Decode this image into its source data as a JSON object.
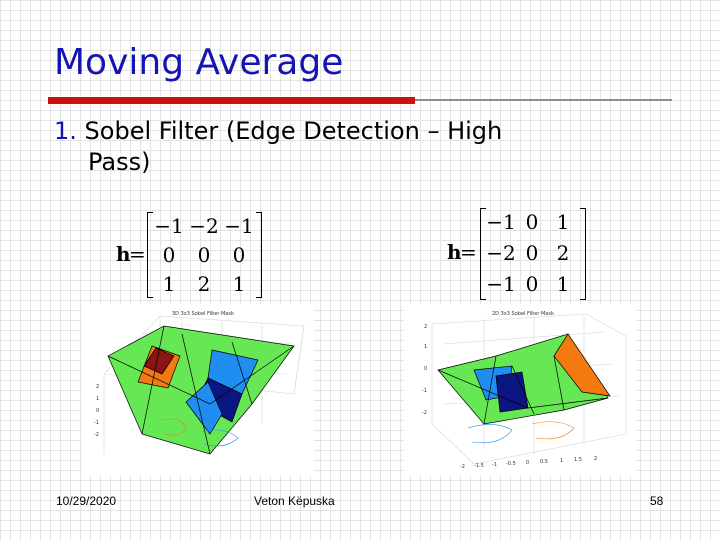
{
  "slide": {
    "title": "Moving Average",
    "bullet_number": "1.",
    "bullet_line1": "Sobel Filter (Edge Detection – High",
    "bullet_line2": "Pass)"
  },
  "matrix_left": {
    "label": "h",
    "equals": "=",
    "rows": [
      [
        "−1",
        "−2",
        "−1"
      ],
      [
        "0",
        "0",
        "0"
      ],
      [
        "1",
        "2",
        "1"
      ]
    ]
  },
  "matrix_right": {
    "label": "h",
    "equals": "=",
    "rows": [
      [
        "−1",
        "0",
        "1"
      ],
      [
        "−2",
        "0",
        "2"
      ],
      [
        "−1",
        "0",
        "1"
      ]
    ]
  },
  "figures": {
    "left_title": "3D 3x3 Sobel Filter Mask",
    "right_title": "2D 3x3 Sobel Filter Mask",
    "left_y_ticks": [
      "2",
      "1",
      "0",
      "-1",
      "-2"
    ],
    "right_y_ticks": [
      "2",
      "1",
      "0",
      "-1",
      "-2"
    ],
    "right_x_ticks": [
      "-2",
      "-1.5",
      "-1",
      "-0.5",
      "0",
      "0.5",
      "1",
      "1.5",
      "2"
    ],
    "colors": {
      "green": "#66e855",
      "blue": "#1f8ef0",
      "navy": "#0c1682",
      "orange": "#f27a10",
      "darkred": "#8b1414"
    }
  },
  "footer": {
    "date": "10/29/2020",
    "author": "Veton Këpuska",
    "page": "58"
  }
}
